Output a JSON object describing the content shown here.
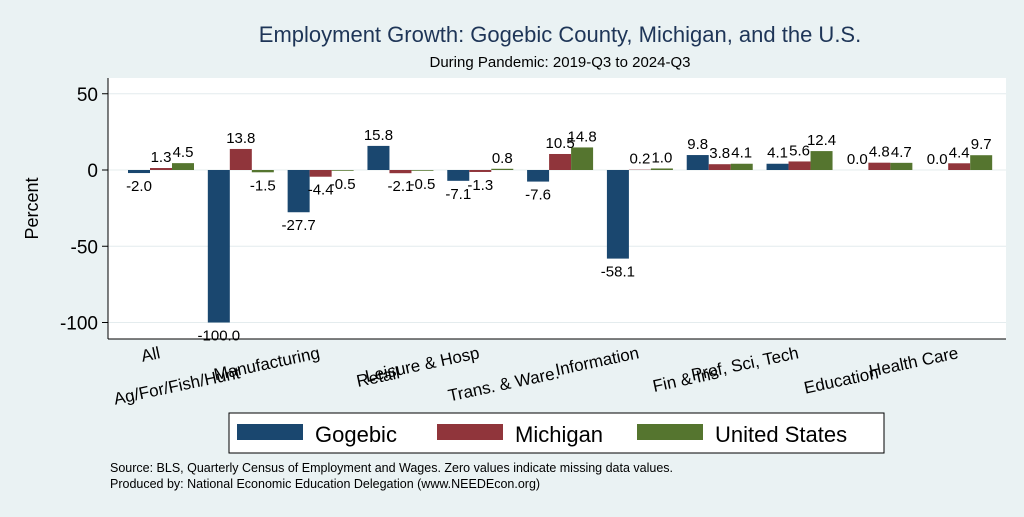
{
  "chart_data": {
    "type": "bar",
    "title": "Employment Growth: Gogebic County, Michigan, and the U.S.",
    "subtitle": "During Pandemic: 2019-Q3 to 2024-Q3",
    "xlabel": "",
    "ylabel": "Percent",
    "ylim": [
      -110,
      60
    ],
    "yticks": [
      50,
      0,
      -50,
      -100
    ],
    "grid": true,
    "legend_position": "bottom",
    "categories": [
      "All",
      "Ag/For/Fish/Hunt",
      "Manufacturing",
      "Retail",
      "Leisure & Hosp",
      "Trans. & Ware.",
      "Information",
      "Fin & Ins",
      "Prof, Sci, Tech",
      "Education",
      "Health Care"
    ],
    "series": [
      {
        "name": "Gogebic",
        "color": "#1a476f",
        "values": [
          -2.0,
          -100.0,
          -27.7,
          15.8,
          -7.1,
          -7.6,
          -58.1,
          9.8,
          4.1,
          0.0,
          0.0
        ]
      },
      {
        "name": "Michigan",
        "color": "#90353b",
        "values": [
          1.3,
          13.8,
          -4.4,
          -2.1,
          -1.3,
          10.5,
          0.2,
          3.8,
          5.6,
          4.8,
          4.4
        ]
      },
      {
        "name": "United States",
        "color": "#55752f",
        "values": [
          4.5,
          -1.5,
          -0.5,
          -0.5,
          0.8,
          14.8,
          1.0,
          4.1,
          12.4,
          4.7,
          9.7
        ]
      }
    ],
    "notes": [
      "Source: BLS, Quarterly Census of Employment and Wages. Zero values indicate missing data values.",
      "Produced by: National Economic Education Delegation (www.NEEDEcon.org)"
    ]
  }
}
